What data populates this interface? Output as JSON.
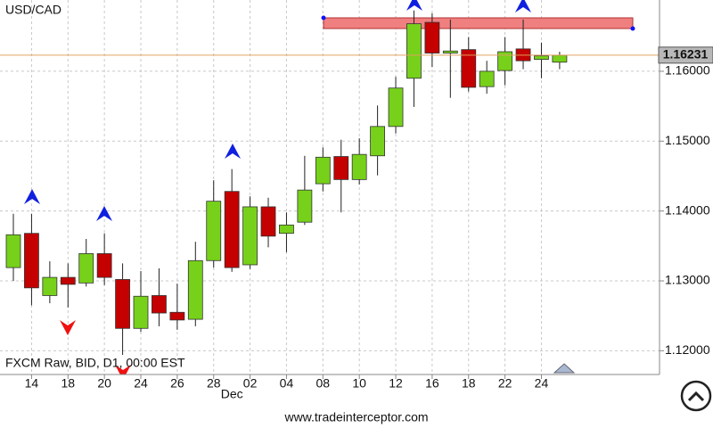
{
  "chart_data": {
    "type": "candlestick",
    "title": "USD/CAD",
    "subtitle": "FXCM Raw, BID, D1, 00:00 EST",
    "categories": [
      null,
      "14",
      null,
      "18",
      null,
      "20",
      null,
      "24",
      null,
      "26",
      null,
      "28",
      null,
      "02",
      null,
      "04",
      null,
      "08",
      null,
      "10",
      null,
      "12",
      null,
      "16",
      null,
      "18",
      null,
      "22",
      null,
      "24",
      null
    ],
    "month_label": "Dec",
    "open": [
      1.1319,
      1.1368,
      1.1279,
      1.1305,
      1.1297,
      1.1339,
      1.1302,
      1.1232,
      1.1279,
      1.1255,
      1.1245,
      1.1329,
      1.1428,
      1.1323,
      1.1406,
      1.1368,
      1.1384,
      1.1439,
      1.1478,
      1.1445,
      1.1479,
      1.1521,
      1.159,
      1.167,
      1.1626,
      1.1631,
      1.1578,
      1.1601,
      1.1632,
      1.1617,
      1.1613
    ],
    "high": [
      1.1396,
      1.1396,
      1.1328,
      1.1325,
      1.136,
      1.1368,
      1.1325,
      1.1314,
      1.1318,
      1.1296,
      1.1356,
      1.1444,
      1.146,
      1.1421,
      1.1419,
      1.1398,
      1.1479,
      1.1491,
      1.1502,
      1.1504,
      1.1551,
      1.1592,
      1.1687,
      1.1683,
      1.1674,
      1.1649,
      1.1615,
      1.1649,
      1.1674,
      1.1641,
      1.1628
    ],
    "low": [
      1.13,
      1.1265,
      1.1268,
      1.1262,
      1.1292,
      1.1294,
      1.1194,
      1.1227,
      1.1235,
      1.123,
      1.1235,
      1.1319,
      1.1313,
      1.1317,
      1.1348,
      1.1341,
      1.138,
      1.1428,
      1.1398,
      1.1438,
      1.1451,
      1.1511,
      1.1549,
      1.1606,
      1.1562,
      1.1571,
      1.1568,
      1.158,
      1.1603,
      1.159,
      1.1603
    ],
    "close": [
      1.1366,
      1.129,
      1.1305,
      1.1295,
      1.1339,
      1.1305,
      1.1232,
      1.1278,
      1.1254,
      1.1244,
      1.1329,
      1.1414,
      1.1319,
      1.1406,
      1.1364,
      1.138,
      1.143,
      1.1477,
      1.1445,
      1.1481,
      1.1521,
      1.1576,
      1.1668,
      1.1626,
      1.1629,
      1.1577,
      1.16,
      1.1628,
      1.1615,
      1.1622,
      1.1623
    ],
    "up_color": "#77d11a",
    "down_color": "#c40000",
    "ylim": [
      1.1166,
      1.1702
    ],
    "yticks": [
      {
        "value": 1.12,
        "label": "1.12000"
      },
      {
        "value": 1.13,
        "label": "1.13000"
      },
      {
        "value": 1.14,
        "label": "1.14000"
      },
      {
        "value": 1.15,
        "label": "1.15000"
      },
      {
        "value": 1.16,
        "label": "1.16000"
      }
    ],
    "last_price": 1.16231,
    "grid": true
  },
  "footer": "www.tradeinterceptor.com"
}
